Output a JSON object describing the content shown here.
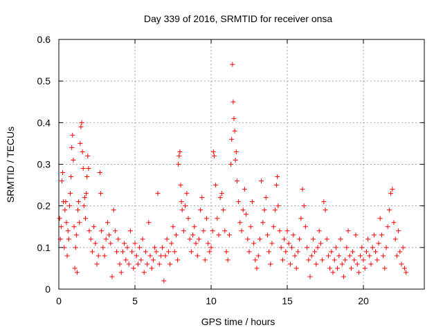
{
  "chart_data": {
    "type": "scatter",
    "title": "Day 339 of 2016, SRMTID for receiver onsa",
    "xlabel": "GPS time / hours",
    "ylabel": "SRMTID / TECUs",
    "xlim": [
      0,
      24
    ],
    "ylim": [
      0,
      0.6
    ],
    "xticks": [
      0,
      5,
      10,
      15,
      20
    ],
    "xtick_labels": [
      "0",
      "5",
      "10",
      "15",
      "20"
    ],
    "yticks": [
      0,
      0.1,
      0.2,
      0.3,
      0.4,
      0.5,
      0.6
    ],
    "ytick_labels": [
      "0",
      "0.1",
      "0.2",
      "0.3",
      "0.4",
      "0.5",
      "0.6"
    ],
    "grid": true,
    "marker": "+",
    "color": "#ff0000",
    "series": [
      {
        "name": "SRMTID",
        "points": [
          [
            0.05,
            0.17
          ],
          [
            0.1,
            0.12
          ],
          [
            0.15,
            0.15
          ],
          [
            0.2,
            0.26
          ],
          [
            0.25,
            0.28
          ],
          [
            0.3,
            0.21
          ],
          [
            0.35,
            0.1
          ],
          [
            0.4,
            0.19
          ],
          [
            0.45,
            0.21
          ],
          [
            0.5,
            0.16
          ],
          [
            0.55,
            0.08
          ],
          [
            0.6,
            0.14
          ],
          [
            0.65,
            0.12
          ],
          [
            0.7,
            0.2
          ],
          [
            0.75,
            0.23
          ],
          [
            0.8,
            0.27
          ],
          [
            0.85,
            0.34
          ],
          [
            0.9,
            0.37
          ],
          [
            0.95,
            0.31
          ],
          [
            1.0,
            0.15
          ],
          [
            1.05,
            0.05
          ],
          [
            1.1,
            0.1
          ],
          [
            1.15,
            0.13
          ],
          [
            1.2,
            0.04
          ],
          [
            1.25,
            0.19
          ],
          [
            1.3,
            0.21
          ],
          [
            1.35,
            0.16
          ],
          [
            1.4,
            0.35
          ],
          [
            1.45,
            0.39
          ],
          [
            1.5,
            0.4
          ],
          [
            1.55,
            0.33
          ],
          [
            1.6,
            0.29
          ],
          [
            1.65,
            0.2
          ],
          [
            1.7,
            0.22
          ],
          [
            1.75,
            0.17
          ],
          [
            1.8,
            0.23
          ],
          [
            1.85,
            0.27
          ],
          [
            1.9,
            0.32
          ],
          [
            1.95,
            0.29
          ],
          [
            2.0,
            0.14
          ],
          [
            2.1,
            0.12
          ],
          [
            2.2,
            0.09
          ],
          [
            2.3,
            0.15
          ],
          [
            2.4,
            0.11
          ],
          [
            2.5,
            0.06
          ],
          [
            2.6,
            0.08
          ],
          [
            2.7,
            0.28
          ],
          [
            2.75,
            0.23
          ],
          [
            2.8,
            0.14
          ],
          [
            2.9,
            0.1
          ],
          [
            3.0,
            0.08
          ],
          [
            3.1,
            0.12
          ],
          [
            3.2,
            0.16
          ],
          [
            3.3,
            0.13
          ],
          [
            3.4,
            0.11
          ],
          [
            3.5,
            0.03
          ],
          [
            3.6,
            0.19
          ],
          [
            3.7,
            0.14
          ],
          [
            3.8,
            0.09
          ],
          [
            3.9,
            0.12
          ],
          [
            4.0,
            0.06
          ],
          [
            4.1,
            0.04
          ],
          [
            4.2,
            0.09
          ],
          [
            4.3,
            0.11
          ],
          [
            4.4,
            0.07
          ],
          [
            4.5,
            0.1
          ],
          [
            4.6,
            0.06
          ],
          [
            4.7,
            0.14
          ],
          [
            4.8,
            0.09
          ],
          [
            4.9,
            0.05
          ],
          [
            5.0,
            0.11
          ],
          [
            5.1,
            0.08
          ],
          [
            5.2,
            0.06
          ],
          [
            5.3,
            0.1
          ],
          [
            5.4,
            0.07
          ],
          [
            5.5,
            0.12
          ],
          [
            5.6,
            0.04
          ],
          [
            5.7,
            0.09
          ],
          [
            5.8,
            0.06
          ],
          [
            5.9,
            0.16
          ],
          [
            6.0,
            0.08
          ],
          [
            6.1,
            0.05
          ],
          [
            6.2,
            0.07
          ],
          [
            6.3,
            0.1
          ],
          [
            6.4,
            0.09
          ],
          [
            6.5,
            0.23
          ],
          [
            6.6,
            0.06
          ],
          [
            6.7,
            0.08
          ],
          [
            6.8,
            0.1
          ],
          [
            6.9,
            0.02
          ],
          [
            7.0,
            0.08
          ],
          [
            7.1,
            0.12
          ],
          [
            7.2,
            0.09
          ],
          [
            7.3,
            0.06
          ],
          [
            7.4,
            0.11
          ],
          [
            7.5,
            0.15
          ],
          [
            7.6,
            0.09
          ],
          [
            7.7,
            0.13
          ],
          [
            7.8,
            0.07
          ],
          [
            7.85,
            0.3
          ],
          [
            7.9,
            0.32
          ],
          [
            7.95,
            0.33
          ],
          [
            8.0,
            0.25
          ],
          [
            8.05,
            0.21
          ],
          [
            8.1,
            0.19
          ],
          [
            8.2,
            0.14
          ],
          [
            8.3,
            0.2
          ],
          [
            8.4,
            0.23
          ],
          [
            8.5,
            0.17
          ],
          [
            8.6,
            0.12
          ],
          [
            8.7,
            0.09
          ],
          [
            8.8,
            0.13
          ],
          [
            8.9,
            0.15
          ],
          [
            9.0,
            0.11
          ],
          [
            9.1,
            0.08
          ],
          [
            9.2,
            0.12
          ],
          [
            9.3,
            0.19
          ],
          [
            9.4,
            0.22
          ],
          [
            9.5,
            0.14
          ],
          [
            9.6,
            0.07
          ],
          [
            9.7,
            0.17
          ],
          [
            9.8,
            0.11
          ],
          [
            9.9,
            0.09
          ],
          [
            10.0,
            0.1
          ],
          [
            10.1,
            0.14
          ],
          [
            10.15,
            0.33
          ],
          [
            10.2,
            0.32
          ],
          [
            10.3,
            0.25
          ],
          [
            10.4,
            0.17
          ],
          [
            10.5,
            0.13
          ],
          [
            10.6,
            0.22
          ],
          [
            10.7,
            0.23
          ],
          [
            10.8,
            0.19
          ],
          [
            10.9,
            0.14
          ],
          [
            11.0,
            0.09
          ],
          [
            11.1,
            0.07
          ],
          [
            11.2,
            0.13
          ],
          [
            11.3,
            0.3
          ],
          [
            11.35,
            0.36
          ],
          [
            11.4,
            0.54
          ],
          [
            11.45,
            0.45
          ],
          [
            11.5,
            0.41
          ],
          [
            11.55,
            0.38
          ],
          [
            11.6,
            0.31
          ],
          [
            11.65,
            0.33
          ],
          [
            11.7,
            0.26
          ],
          [
            11.8,
            0.21
          ],
          [
            11.9,
            0.16
          ],
          [
            12.0,
            0.14
          ],
          [
            12.1,
            0.19
          ],
          [
            12.2,
            0.24
          ],
          [
            12.3,
            0.18
          ],
          [
            12.4,
            0.12
          ],
          [
            12.5,
            0.09
          ],
          [
            12.6,
            0.15
          ],
          [
            12.7,
            0.21
          ],
          [
            12.8,
            0.11
          ],
          [
            12.9,
            0.07
          ],
          [
            13.0,
            0.05
          ],
          [
            13.1,
            0.08
          ],
          [
            13.2,
            0.12
          ],
          [
            13.3,
            0.26
          ],
          [
            13.4,
            0.16
          ],
          [
            13.5,
            0.19
          ],
          [
            13.6,
            0.22
          ],
          [
            13.7,
            0.13
          ],
          [
            13.8,
            0.09
          ],
          [
            13.9,
            0.06
          ],
          [
            14.0,
            0.11
          ],
          [
            14.1,
            0.15
          ],
          [
            14.2,
            0.19
          ],
          [
            14.3,
            0.25
          ],
          [
            14.35,
            0.27
          ],
          [
            14.4,
            0.2
          ],
          [
            14.5,
            0.14
          ],
          [
            14.6,
            0.1
          ],
          [
            14.7,
            0.07
          ],
          [
            14.8,
            0.12
          ],
          [
            14.9,
            0.09
          ],
          [
            15.0,
            0.14
          ],
          [
            15.1,
            0.11
          ],
          [
            15.2,
            0.06
          ],
          [
            15.3,
            0.1
          ],
          [
            15.4,
            0.13
          ],
          [
            15.5,
            0.08
          ],
          [
            15.6,
            0.05
          ],
          [
            15.7,
            0.09
          ],
          [
            15.8,
            0.12
          ],
          [
            15.9,
            0.17
          ],
          [
            16.0,
            0.24
          ],
          [
            16.1,
            0.2
          ],
          [
            16.2,
            0.15
          ],
          [
            16.3,
            0.1
          ],
          [
            16.4,
            0.07
          ],
          [
            16.5,
            0.03
          ],
          [
            16.6,
            0.08
          ],
          [
            16.7,
            0.12
          ],
          [
            16.8,
            0.09
          ],
          [
            16.9,
            0.06
          ],
          [
            17.0,
            0.1
          ],
          [
            17.1,
            0.14
          ],
          [
            17.2,
            0.11
          ],
          [
            17.3,
            0.07
          ],
          [
            17.4,
            0.21
          ],
          [
            17.5,
            0.19
          ],
          [
            17.6,
            0.12
          ],
          [
            17.7,
            0.08
          ],
          [
            17.8,
            0.05
          ],
          [
            17.9,
            0.09
          ],
          [
            18.0,
            0.04
          ],
          [
            18.1,
            0.07
          ],
          [
            18.2,
            0.1
          ],
          [
            18.3,
            0.05
          ],
          [
            18.4,
            0.08
          ],
          [
            18.5,
            0.12
          ],
          [
            18.6,
            0.06
          ],
          [
            18.7,
            0.03
          ],
          [
            18.8,
            0.07
          ],
          [
            18.9,
            0.1
          ],
          [
            19.0,
            0.14
          ],
          [
            19.1,
            0.08
          ],
          [
            19.2,
            0.05
          ],
          [
            19.3,
            0.09
          ],
          [
            19.4,
            0.07
          ],
          [
            19.5,
            0.13
          ],
          [
            19.6,
            0.06
          ],
          [
            19.7,
            0.04
          ],
          [
            19.8,
            0.08
          ],
          [
            19.9,
            0.1
          ],
          [
            20.0,
            0.07
          ],
          [
            20.1,
            0.05
          ],
          [
            20.2,
            0.09
          ],
          [
            20.3,
            0.12
          ],
          [
            20.4,
            0.08
          ],
          [
            20.5,
            0.06
          ],
          [
            20.6,
            0.1
          ],
          [
            20.7,
            0.13
          ],
          [
            20.8,
            0.09
          ],
          [
            20.9,
            0.07
          ],
          [
            21.0,
            0.11
          ],
          [
            21.1,
            0.17
          ],
          [
            21.2,
            0.13
          ],
          [
            21.3,
            0.08
          ],
          [
            21.4,
            0.05
          ],
          [
            21.5,
            0.1
          ],
          [
            21.6,
            0.15
          ],
          [
            21.7,
            0.19
          ],
          [
            21.8,
            0.23
          ],
          [
            21.9,
            0.24
          ],
          [
            22.0,
            0.16
          ],
          [
            22.1,
            0.12
          ],
          [
            22.2,
            0.08
          ],
          [
            22.3,
            0.14
          ],
          [
            22.4,
            0.09
          ],
          [
            22.5,
            0.06
          ],
          [
            22.6,
            0.1
          ],
          [
            22.7,
            0.05
          ],
          [
            22.8,
            0.04
          ]
        ]
      }
    ]
  }
}
